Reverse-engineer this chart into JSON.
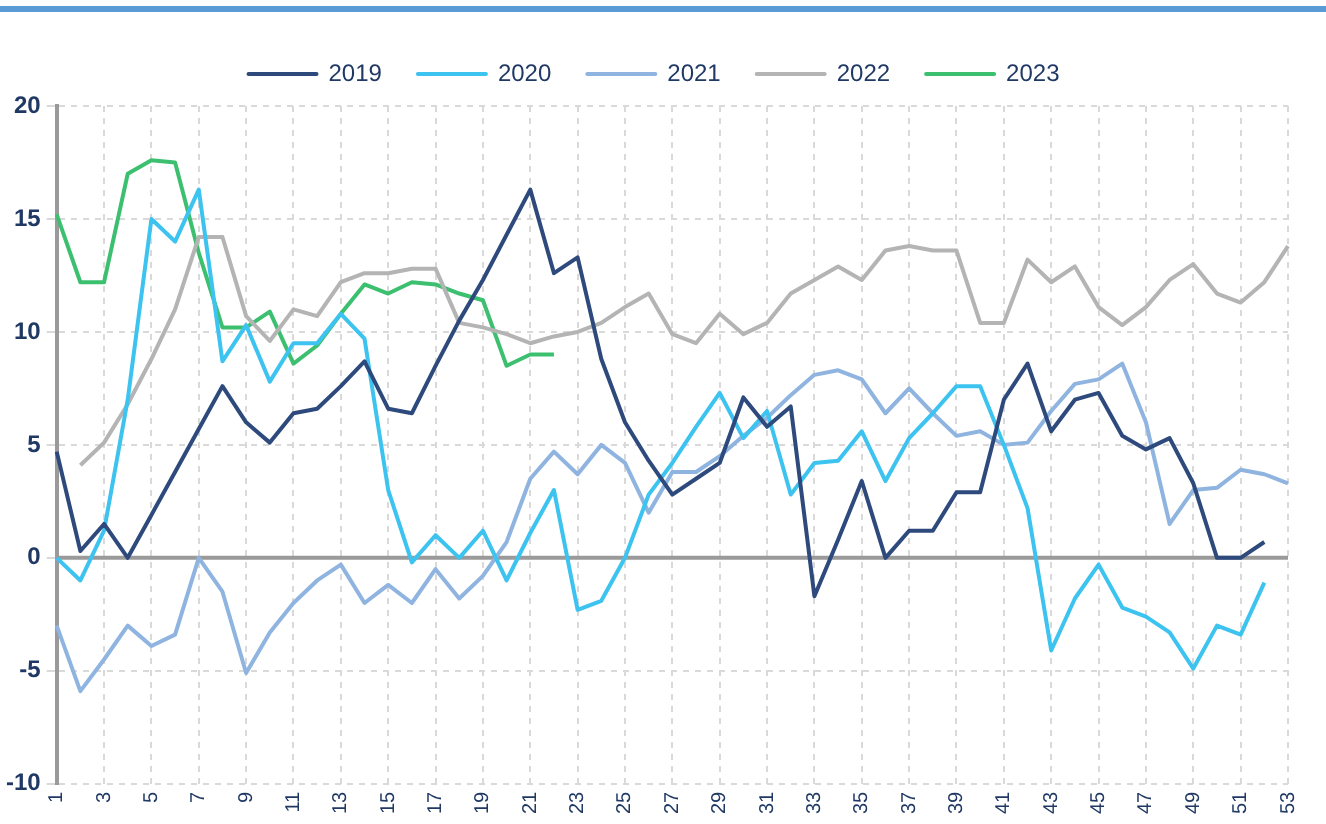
{
  "chart_data": {
    "type": "line",
    "categories": [
      "1",
      null,
      "3",
      null,
      "5",
      null,
      "7",
      null,
      "9",
      null,
      "11",
      null,
      "13",
      null,
      "15",
      null,
      "17",
      null,
      "19",
      null,
      "21",
      null,
      "23",
      null,
      "25",
      null,
      "27",
      null,
      "29",
      null,
      "31",
      null,
      "33",
      null,
      "35",
      null,
      "37",
      null,
      "39",
      null,
      "41",
      null,
      "43",
      null,
      "45",
      null,
      "47",
      null,
      "49",
      null,
      "51",
      null,
      "53"
    ],
    "series": [
      {
        "name": "2019",
        "color": "#2e4a7d",
        "values": [
          4.7,
          0.3,
          1.5,
          0,
          1.9,
          3.8,
          5.7,
          7.6,
          6,
          5.1,
          6.4,
          6.6,
          7.6,
          8.7,
          6.6,
          6.4,
          8.5,
          10.5,
          12.3,
          14.3,
          16.3,
          12.6,
          13.3,
          8.8,
          6,
          4.3,
          2.8,
          3.5,
          4.2,
          7.1,
          5.8,
          6.7,
          -1.7,
          0.8,
          3.4,
          0,
          1.2,
          1.2,
          2.9,
          2.9,
          7,
          8.6,
          5.6,
          7,
          7.3,
          5.4,
          4.8,
          5.3,
          3.3,
          0,
          0,
          0.7,
          null
        ]
      },
      {
        "name": "2020",
        "color": "#3cc3ef",
        "values": [
          0,
          -1,
          1.2,
          7,
          15,
          14,
          16.3,
          8.7,
          10.3,
          7.8,
          9.5,
          9.5,
          10.8,
          9.7,
          3,
          -0.2,
          1,
          0,
          1.2,
          -1,
          1.1,
          3,
          -2.3,
          -1.9,
          0,
          2.8,
          4.2,
          5.8,
          7.3,
          5.3,
          6.5,
          2.8,
          4.2,
          4.3,
          5.6,
          3.4,
          5.3,
          6.4,
          7.6,
          7.6,
          5,
          2.2,
          -4.1,
          -1.8,
          -0.3,
          -2.2,
          -2.6,
          -3.3,
          -4.9,
          -3,
          -3.4,
          -1.1,
          null
        ]
      },
      {
        "name": "2021",
        "color": "#8fb4e0",
        "values": [
          -3,
          -5.9,
          -4.5,
          -3,
          -3.9,
          -3.4,
          0,
          -1.5,
          -5.1,
          -3.3,
          -2,
          -1,
          -0.3,
          -2,
          -1.2,
          -2,
          -0.5,
          -1.8,
          -0.8,
          0.7,
          3.5,
          4.7,
          3.7,
          5,
          4.2,
          2,
          3.8,
          3.8,
          4.5,
          5.4,
          6.2,
          7.2,
          8.1,
          8.3,
          7.9,
          6.4,
          7.5,
          6.4,
          5.4,
          5.6,
          5,
          5.1,
          6.5,
          7.7,
          7.9,
          8.6,
          6,
          1.5,
          3,
          3.1,
          3.9,
          3.7,
          3.3
        ]
      },
      {
        "name": "2022",
        "color": "#b4b4b4",
        "values": [
          null,
          4.1,
          5.1,
          6.8,
          8.8,
          11,
          14.2,
          14.2,
          10.7,
          9.6,
          11,
          10.7,
          12.2,
          12.6,
          12.6,
          12.8,
          12.8,
          10.4,
          10.2,
          9.9,
          9.5,
          9.8,
          10,
          10.4,
          11.1,
          11.7,
          9.9,
          9.5,
          10.8,
          9.9,
          10.4,
          11.7,
          12.3,
          12.9,
          12.3,
          13.6,
          13.8,
          13.6,
          13.6,
          10.4,
          10.4,
          13.2,
          12.2,
          12.9,
          11.1,
          10.3,
          11.1,
          12.3,
          13,
          11.7,
          11.3,
          12.2,
          13.8
        ]
      },
      {
        "name": "2023",
        "color": "#3cc070",
        "values": [
          15.2,
          12.2,
          12.2,
          17,
          17.6,
          17.5,
          13.5,
          10.2,
          10.2,
          10.9,
          8.6,
          9.4,
          10.8,
          12.1,
          11.7,
          12.2,
          12.1,
          11.7,
          11.4,
          8.5,
          9,
          9,
          null,
          null,
          null,
          null,
          null,
          null,
          null,
          null,
          null,
          null,
          null,
          null,
          null,
          null,
          null,
          null,
          null,
          null,
          null,
          null,
          null,
          null,
          null,
          null,
          null,
          null,
          null,
          null,
          null,
          null,
          null
        ]
      }
    ],
    "ylim": [
      -10,
      20
    ],
    "yticks": [
      -10,
      -5,
      0,
      5,
      10,
      15,
      20
    ],
    "ref_lines": [
      {
        "axis": "y",
        "value": 0,
        "color": "#9a9a9a"
      }
    ],
    "grid": true,
    "legend": "top",
    "marker": "none",
    "line_style": "solid"
  }
}
